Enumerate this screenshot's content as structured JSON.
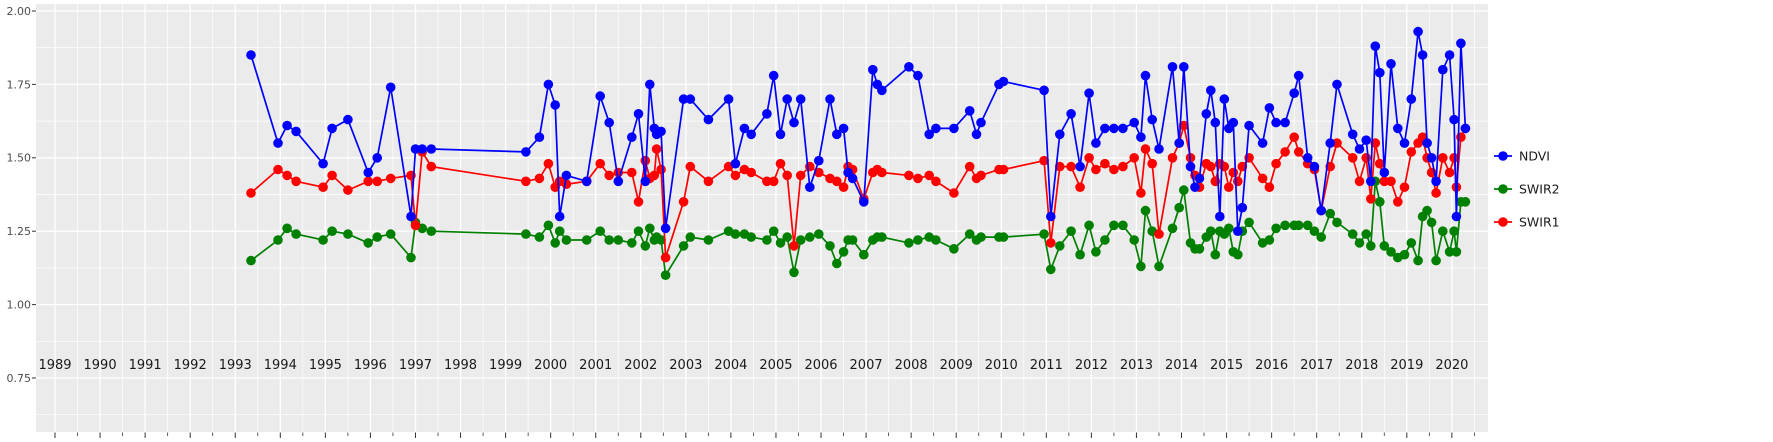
{
  "chart_data": {
    "type": "line",
    "title": "",
    "xlabel": "",
    "ylabel": "",
    "grid": true,
    "panel_background": "#EBEBEB",
    "grid_color": "#FFFFFF",
    "axis_text_color_y": "#4D4D4D",
    "axis_text_color_x": "#1A1A1A",
    "tick_color": "#333333",
    "legend_position": "right",
    "x_range": [
      1988.6,
      2020.8
    ],
    "y_range": [
      0.57,
      2.02
    ],
    "x_major_ticks": [
      1989,
      1990,
      1991,
      1992,
      1993,
      1994,
      1995,
      1996,
      1997,
      1998,
      1999,
      2000,
      2001,
      2002,
      2003,
      2004,
      2005,
      2006,
      2007,
      2008,
      2009,
      2010,
      2011,
      2012,
      2013,
      2014,
      2015,
      2016,
      2017,
      2018,
      2019,
      2020
    ],
    "y_major_ticks": [
      0.75,
      1.0,
      1.25,
      1.5,
      1.75,
      2.0
    ],
    "y_tick_labels": [
      "0.75",
      "1.00",
      "1.25",
      "1.50",
      "1.75",
      "2.00"
    ],
    "legend_order": [
      "NDVI",
      "SWIR2",
      "SWIR1"
    ],
    "x": [
      1993.35,
      1993.95,
      1994.15,
      1994.35,
      1994.95,
      1995.15,
      1995.5,
      1995.95,
      1996.15,
      1996.45,
      1996.9,
      1997.0,
      1997.15,
      1997.35,
      1999.45,
      1999.75,
      1999.95,
      2000.1,
      2000.2,
      2000.35,
      2000.8,
      2001.1,
      2001.3,
      2001.5,
      2001.8,
      2001.95,
      2002.1,
      2002.2,
      2002.3,
      2002.35,
      2002.45,
      2002.55,
      2002.95,
      2003.1,
      2003.5,
      2003.95,
      2004.1,
      2004.3,
      2004.45,
      2004.8,
      2004.95,
      2005.1,
      2005.25,
      2005.4,
      2005.55,
      2005.75,
      2005.95,
      2006.2,
      2006.35,
      2006.5,
      2006.6,
      2006.7,
      2006.95,
      2007.15,
      2007.25,
      2007.35,
      2007.95,
      2008.15,
      2008.4,
      2008.55,
      2008.95,
      2009.3,
      2009.45,
      2009.55,
      2009.95,
      2010.05,
      2010.95,
      2011.1,
      2011.3,
      2011.55,
      2011.75,
      2011.95,
      2012.1,
      2012.3,
      2012.5,
      2012.7,
      2012.95,
      2013.1,
      2013.2,
      2013.35,
      2013.5,
      2013.8,
      2013.95,
      2014.05,
      2014.2,
      2014.3,
      2014.4,
      2014.55,
      2014.65,
      2014.75,
      2014.85,
      2014.95,
      2015.05,
      2015.15,
      2015.25,
      2015.35,
      2015.5,
      2015.8,
      2015.95,
      2016.1,
      2016.3,
      2016.5,
      2016.6,
      2016.8,
      2016.95,
      2017.1,
      2017.3,
      2017.45,
      2017.8,
      2017.95,
      2018.1,
      2018.2,
      2018.3,
      2018.4,
      2018.5,
      2018.65,
      2018.8,
      2018.95,
      2019.1,
      2019.25,
      2019.35,
      2019.45,
      2019.55,
      2019.65,
      2019.8,
      2019.95,
      2020.05,
      2020.1,
      2020.2,
      2020.3
    ],
    "series": [
      {
        "name": "NDVI",
        "color": "#0000FF",
        "values": [
          1.85,
          1.55,
          1.61,
          1.59,
          1.48,
          1.6,
          1.63,
          1.45,
          1.5,
          1.74,
          1.3,
          1.53,
          1.53,
          1.53,
          1.52,
          1.57,
          1.75,
          1.68,
          1.3,
          1.44,
          1.42,
          1.71,
          1.62,
          1.42,
          1.57,
          1.65,
          1.42,
          1.75,
          1.6,
          1.58,
          1.59,
          1.26,
          1.7,
          1.7,
          1.63,
          1.7,
          1.48,
          1.6,
          1.58,
          1.65,
          1.78,
          1.58,
          1.7,
          1.62,
          1.7,
          1.4,
          1.49,
          1.7,
          1.58,
          1.6,
          1.45,
          1.43,
          1.35,
          1.8,
          1.75,
          1.73,
          1.81,
          1.78,
          1.58,
          1.6,
          1.6,
          1.66,
          1.58,
          1.62,
          1.75,
          1.76,
          1.73,
          1.3,
          1.58,
          1.65,
          1.47,
          1.72,
          1.55,
          1.6,
          1.6,
          1.6,
          1.62,
          1.57,
          1.78,
          1.63,
          1.53,
          1.81,
          1.55,
          1.81,
          1.47,
          1.4,
          1.43,
          1.65,
          1.73,
          1.62,
          1.3,
          1.7,
          1.6,
          1.62,
          1.25,
          1.33,
          1.61,
          1.55,
          1.67,
          1.62,
          1.62,
          1.72,
          1.78,
          1.5,
          1.47,
          1.32,
          1.55,
          1.75,
          1.58,
          1.53,
          1.56,
          1.42,
          1.88,
          1.79,
          1.45,
          1.82,
          1.6,
          1.55,
          1.7,
          1.93,
          1.85,
          1.55,
          1.5,
          1.42,
          1.8,
          1.85,
          1.63,
          1.3,
          1.89,
          1.6
        ]
      },
      {
        "name": "SWIR2",
        "color": "#008000",
        "values": [
          1.15,
          1.22,
          1.26,
          1.24,
          1.22,
          1.25,
          1.24,
          1.21,
          1.23,
          1.24,
          1.16,
          1.28,
          1.26,
          1.25,
          1.24,
          1.23,
          1.27,
          1.21,
          1.25,
          1.22,
          1.22,
          1.25,
          1.22,
          1.22,
          1.21,
          1.25,
          1.2,
          1.26,
          1.22,
          1.23,
          1.22,
          1.1,
          1.2,
          1.23,
          1.22,
          1.25,
          1.24,
          1.24,
          1.23,
          1.22,
          1.25,
          1.21,
          1.23,
          1.11,
          1.22,
          1.23,
          1.24,
          1.2,
          1.14,
          1.18,
          1.22,
          1.22,
          1.17,
          1.22,
          1.23,
          1.23,
          1.21,
          1.22,
          1.23,
          1.22,
          1.19,
          1.24,
          1.22,
          1.23,
          1.23,
          1.23,
          1.24,
          1.12,
          1.2,
          1.25,
          1.17,
          1.27,
          1.18,
          1.22,
          1.27,
          1.27,
          1.22,
          1.13,
          1.32,
          1.25,
          1.13,
          1.26,
          1.33,
          1.39,
          1.21,
          1.19,
          1.19,
          1.23,
          1.25,
          1.17,
          1.25,
          1.24,
          1.26,
          1.18,
          1.17,
          1.25,
          1.28,
          1.21,
          1.22,
          1.26,
          1.27,
          1.27,
          1.27,
          1.27,
          1.25,
          1.23,
          1.31,
          1.28,
          1.24,
          1.21,
          1.24,
          1.2,
          1.42,
          1.35,
          1.2,
          1.18,
          1.16,
          1.17,
          1.21,
          1.15,
          1.3,
          1.32,
          1.28,
          1.15,
          1.25,
          1.18,
          1.25,
          1.18,
          1.35,
          1.35
        ]
      },
      {
        "name": "SWIR1",
        "color": "#FF0000",
        "values": [
          1.38,
          1.46,
          1.44,
          1.42,
          1.4,
          1.44,
          1.39,
          1.42,
          1.42,
          1.43,
          1.44,
          1.27,
          1.52,
          1.47,
          1.42,
          1.43,
          1.48,
          1.4,
          1.42,
          1.41,
          1.42,
          1.48,
          1.44,
          1.45,
          1.45,
          1.35,
          1.49,
          1.43,
          1.44,
          1.53,
          1.46,
          1.16,
          1.35,
          1.47,
          1.42,
          1.47,
          1.44,
          1.46,
          1.45,
          1.42,
          1.42,
          1.48,
          1.44,
          1.2,
          1.44,
          1.47,
          1.45,
          1.43,
          1.42,
          1.4,
          1.47,
          1.46,
          1.36,
          1.45,
          1.46,
          1.45,
          1.44,
          1.43,
          1.44,
          1.42,
          1.38,
          1.47,
          1.43,
          1.44,
          1.46,
          1.46,
          1.49,
          1.21,
          1.47,
          1.47,
          1.4,
          1.5,
          1.46,
          1.48,
          1.46,
          1.47,
          1.5,
          1.38,
          1.53,
          1.48,
          1.24,
          1.5,
          1.55,
          1.61,
          1.5,
          1.44,
          1.4,
          1.48,
          1.47,
          1.42,
          1.48,
          1.47,
          1.4,
          1.45,
          1.42,
          1.47,
          1.5,
          1.43,
          1.4,
          1.48,
          1.52,
          1.57,
          1.52,
          1.48,
          1.46,
          1.32,
          1.47,
          1.55,
          1.5,
          1.42,
          1.5,
          1.36,
          1.55,
          1.48,
          1.42,
          1.42,
          1.35,
          1.4,
          1.52,
          1.55,
          1.57,
          1.5,
          1.45,
          1.38,
          1.5,
          1.45,
          1.5,
          1.4,
          1.57,
          1.6
        ]
      }
    ]
  }
}
